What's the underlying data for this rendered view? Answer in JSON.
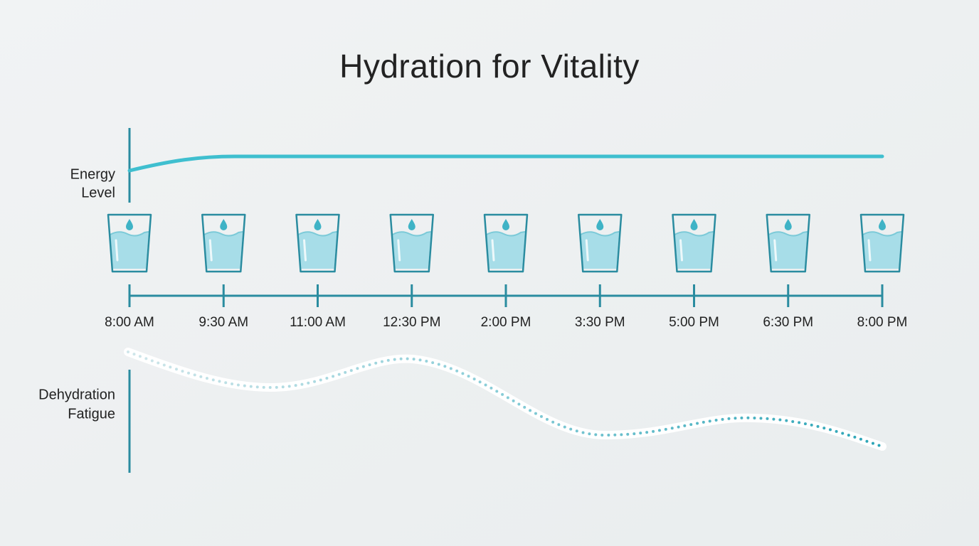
{
  "title": "Hydration for Vitality",
  "energy_label": [
    "Energy",
    "Level"
  ],
  "fatigue_label": [
    "Dehydration",
    "Fatigue"
  ],
  "times": [
    "8:00 AM",
    "9:30 AM",
    "11:00 AM",
    "12:30 PM",
    "2:00 PM",
    "3:30 PM",
    "5:00 PM",
    "6:30 PM",
    "8:00 PM"
  ]
}
